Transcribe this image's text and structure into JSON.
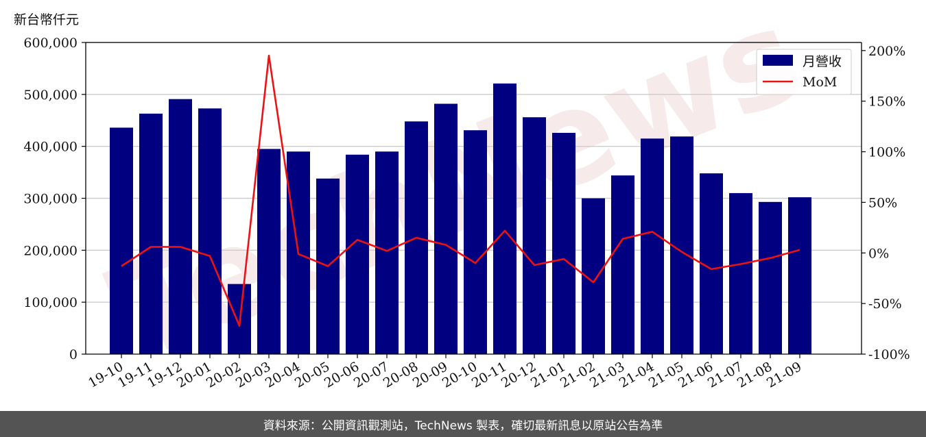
{
  "unit_label": "新台幣仟元",
  "footer_text": "資料來源：公開資訊觀測站，TechNews 製表，確切最新訊息以原站公告為準",
  "watermark": "TechNews",
  "colors": {
    "bar": "#000080",
    "line": "#ee1111",
    "grid": "#cccccc",
    "footer_bg": "#545454",
    "watermark": "#f3e3e3"
  },
  "chart_data": {
    "type": "bar",
    "categories": [
      "19-10",
      "19-11",
      "19-12",
      "20-01",
      "20-02",
      "20-03",
      "20-04",
      "20-05",
      "20-06",
      "20-07",
      "20-08",
      "20-09",
      "20-10",
      "20-11",
      "20-12",
      "21-01",
      "21-02",
      "21-03",
      "21-04",
      "21-05",
      "21-06",
      "21-07",
      "21-08",
      "21-09"
    ],
    "series": [
      {
        "name": "月營收",
        "type": "bar",
        "axis": "left",
        "values": [
          436000,
          463000,
          491000,
          473000,
          135000,
          395000,
          390000,
          338000,
          384000,
          390000,
          448000,
          482000,
          431000,
          521000,
          456000,
          426000,
          300000,
          344000,
          415000,
          419000,
          348000,
          310000,
          293000,
          302000
        ]
      },
      {
        "name": "MoM",
        "type": "line",
        "axis": "right",
        "values": [
          -13,
          6,
          6,
          -3,
          -72,
          195,
          -1,
          -13,
          13,
          2,
          15,
          8,
          -10,
          22,
          -12,
          -6,
          -29,
          14,
          21,
          1,
          -16,
          -11,
          -5,
          3
        ]
      }
    ],
    "y_left": {
      "ylim": [
        0,
        600000
      ],
      "ticks": [
        "0",
        "100,000",
        "200,000",
        "300,000",
        "400,000",
        "500,000",
        "600,000"
      ],
      "tick_values": [
        0,
        100000,
        200000,
        300000,
        400000,
        500000,
        600000
      ]
    },
    "y_right": {
      "ylim": [
        -100,
        208
      ],
      "ticks": [
        "-100%",
        "-50%",
        "0%",
        "50%",
        "100%",
        "150%",
        "200%"
      ],
      "tick_values": [
        -100,
        -50,
        0,
        50,
        100,
        150,
        200
      ]
    },
    "grid": "horizontal",
    "legend_position": "top-right",
    "legend": [
      "月營收",
      "MoM"
    ]
  }
}
